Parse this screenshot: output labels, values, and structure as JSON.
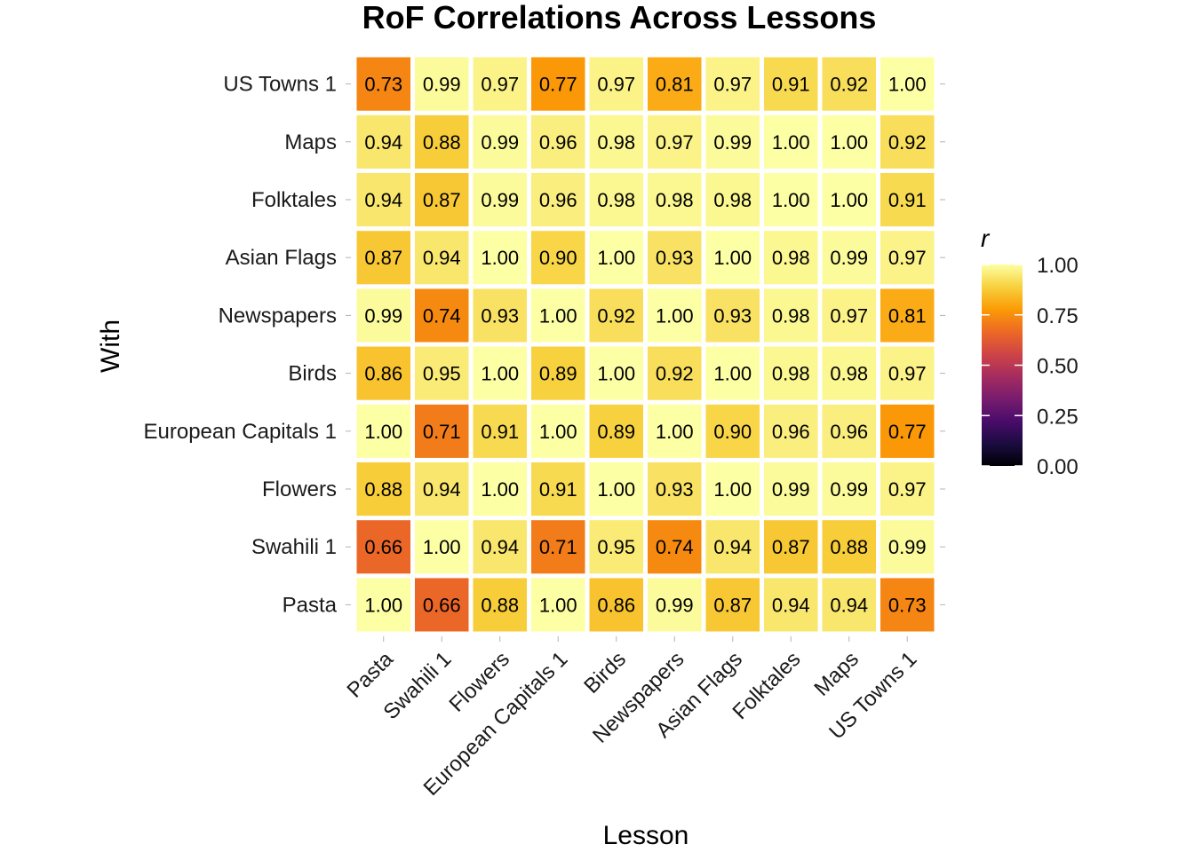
{
  "chart_data": {
    "type": "heatmap",
    "title": "RoF Correlations Across Lessons",
    "xlabel": "Lesson",
    "ylabel": "With",
    "x_categories": [
      "Pasta",
      "Swahili 1",
      "Flowers",
      "European Capitals 1",
      "Birds",
      "Newspapers",
      "Asian Flags",
      "Folktales",
      "Maps",
      "US Towns 1"
    ],
    "y_categories": [
      "Pasta",
      "Swahili 1",
      "Flowers",
      "European Capitals 1",
      "Birds",
      "Newspapers",
      "Asian Flags",
      "Folktales",
      "Maps",
      "US Towns 1"
    ],
    "values": [
      [
        1.0,
        0.66,
        0.88,
        1.0,
        0.86,
        0.99,
        0.87,
        0.94,
        0.94,
        0.73
      ],
      [
        0.66,
        1.0,
        0.94,
        0.71,
        0.95,
        0.74,
        0.94,
        0.87,
        0.88,
        0.99
      ],
      [
        0.88,
        0.94,
        1.0,
        0.91,
        1.0,
        0.93,
        1.0,
        0.99,
        0.99,
        0.97
      ],
      [
        1.0,
        0.71,
        0.91,
        1.0,
        0.89,
        1.0,
        0.9,
        0.96,
        0.96,
        0.77
      ],
      [
        0.86,
        0.95,
        1.0,
        0.89,
        1.0,
        0.92,
        1.0,
        0.98,
        0.98,
        0.97
      ],
      [
        0.99,
        0.74,
        0.93,
        1.0,
        0.92,
        1.0,
        0.93,
        0.98,
        0.97,
        0.81
      ],
      [
        0.87,
        0.94,
        1.0,
        0.9,
        1.0,
        0.93,
        1.0,
        0.98,
        0.99,
        0.97
      ],
      [
        0.94,
        0.87,
        0.99,
        0.96,
        0.98,
        0.98,
        0.98,
        1.0,
        1.0,
        0.91
      ],
      [
        0.94,
        0.88,
        0.99,
        0.96,
        0.98,
        0.97,
        0.99,
        1.0,
        1.0,
        0.92
      ],
      [
        0.73,
        0.99,
        0.97,
        0.77,
        0.97,
        0.81,
        0.97,
        0.91,
        0.92,
        1.0
      ]
    ],
    "legend": {
      "title": "r",
      "placement": "right",
      "ticks": [
        "1.00",
        "0.75",
        "0.50",
        "0.25",
        "0.00"
      ],
      "range": [
        0,
        1
      ],
      "colormap": "inferno"
    },
    "colors": {
      "inferno": [
        "#000004",
        "#1b0c41",
        "#4a0c6b",
        "#781c6d",
        "#a52c60",
        "#cf4446",
        "#ed6925",
        "#fb9b06",
        "#f7d13d",
        "#fcffa4"
      ],
      "cell_border": "#ffffff"
    },
    "grid": false
  }
}
